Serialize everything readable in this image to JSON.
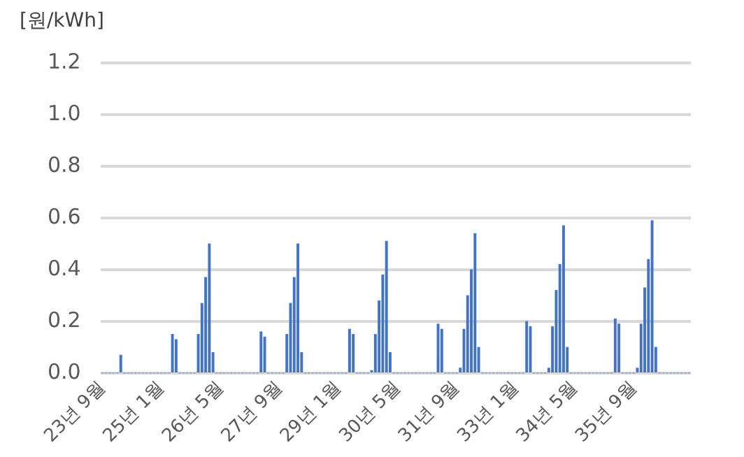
{
  "chart_data": {
    "type": "bar",
    "ylabel": "[원/kWh]",
    "color": "#4472c4",
    "grid": "y",
    "categories": [
      "23년 9월",
      null,
      null,
      null,
      null,
      null,
      null,
      null,
      null,
      null,
      null,
      null,
      null,
      null,
      null,
      null,
      "25년 1월",
      null,
      null,
      null,
      null,
      null,
      null,
      null,
      null,
      null,
      null,
      null,
      null,
      null,
      null,
      null,
      "26년 5월",
      null,
      null,
      null,
      null,
      null,
      null,
      null,
      null,
      null,
      null,
      null,
      null,
      null,
      null,
      null,
      "27년 9월",
      null,
      null,
      null,
      null,
      null,
      null,
      null,
      null,
      null,
      null,
      null,
      null,
      null,
      null,
      null,
      "29년 1월",
      null,
      null,
      null,
      null,
      null,
      null,
      null,
      null,
      null,
      null,
      null,
      null,
      null,
      null,
      null,
      "30년 5월",
      null,
      null,
      null,
      null,
      null,
      null,
      null,
      null,
      null,
      null,
      null,
      null,
      null,
      null,
      null,
      "31년 9월",
      null,
      null,
      null,
      null,
      null,
      null,
      null,
      null,
      null,
      null,
      null,
      null,
      null,
      null,
      null,
      "33년 1월",
      null,
      null,
      null,
      null,
      null,
      null,
      null,
      null,
      null,
      null,
      null,
      null,
      null,
      null,
      null,
      "34년 5월",
      null,
      null,
      null,
      null,
      null,
      null,
      null,
      null,
      null,
      null,
      null,
      null,
      null,
      null,
      null,
      "35년 9월",
      null,
      null,
      null,
      null,
      null,
      null,
      null,
      null,
      null,
      null,
      null,
      null,
      null,
      null,
      null
    ],
    "values": [
      0,
      0,
      0,
      0,
      0,
      0.07,
      0,
      0,
      0,
      0,
      0,
      0,
      0,
      0,
      0,
      0,
      0,
      0,
      0,
      0.15,
      0.13,
      0,
      0,
      0,
      0,
      0,
      0.15,
      0.27,
      0.37,
      0.5,
      0.08,
      0,
      0,
      0,
      0,
      0,
      0,
      0,
      0,
      0,
      0,
      0,
      0,
      0.16,
      0.14,
      0,
      0,
      0,
      0,
      0,
      0.15,
      0.27,
      0.37,
      0.5,
      0.08,
      0,
      0,
      0,
      0,
      0,
      0,
      0,
      0,
      0,
      0,
      0,
      0,
      0.17,
      0.15,
      0,
      0,
      0,
      0,
      0.01,
      0.15,
      0.28,
      0.38,
      0.51,
      0.08,
      0,
      0,
      0,
      0,
      0,
      0,
      0,
      0,
      0,
      0,
      0,
      0,
      0.19,
      0.17,
      0,
      0,
      0,
      0,
      0.02,
      0.17,
      0.3,
      0.4,
      0.54,
      0.1,
      0,
      0,
      0,
      0,
      0,
      0,
      0,
      0,
      0,
      0,
      0,
      0,
      0.2,
      0.18,
      0,
      0,
      0,
      0,
      0.02,
      0.18,
      0.32,
      0.42,
      0.57,
      0.1,
      0,
      0,
      0,
      0,
      0,
      0,
      0,
      0,
      0,
      0,
      0,
      0,
      0.21,
      0.19,
      0,
      0,
      0,
      0,
      0.02,
      0.19,
      0.33,
      0.44,
      0.59,
      0.1,
      0,
      0,
      0,
      0,
      0,
      0,
      0,
      0,
      0
    ],
    "ylim": [
      0,
      1.2
    ],
    "yticks": [
      {
        "value": 0,
        "label": "0.0"
      },
      {
        "value": 0.2,
        "label": "0.2"
      },
      {
        "value": 0.4,
        "label": "0.4"
      },
      {
        "value": 0.6,
        "label": "0.6"
      },
      {
        "value": 0.8,
        "label": "0.8"
      },
      {
        "value": 1,
        "label": "1.0"
      },
      {
        "value": 1.2,
        "label": "1.2"
      }
    ]
  }
}
